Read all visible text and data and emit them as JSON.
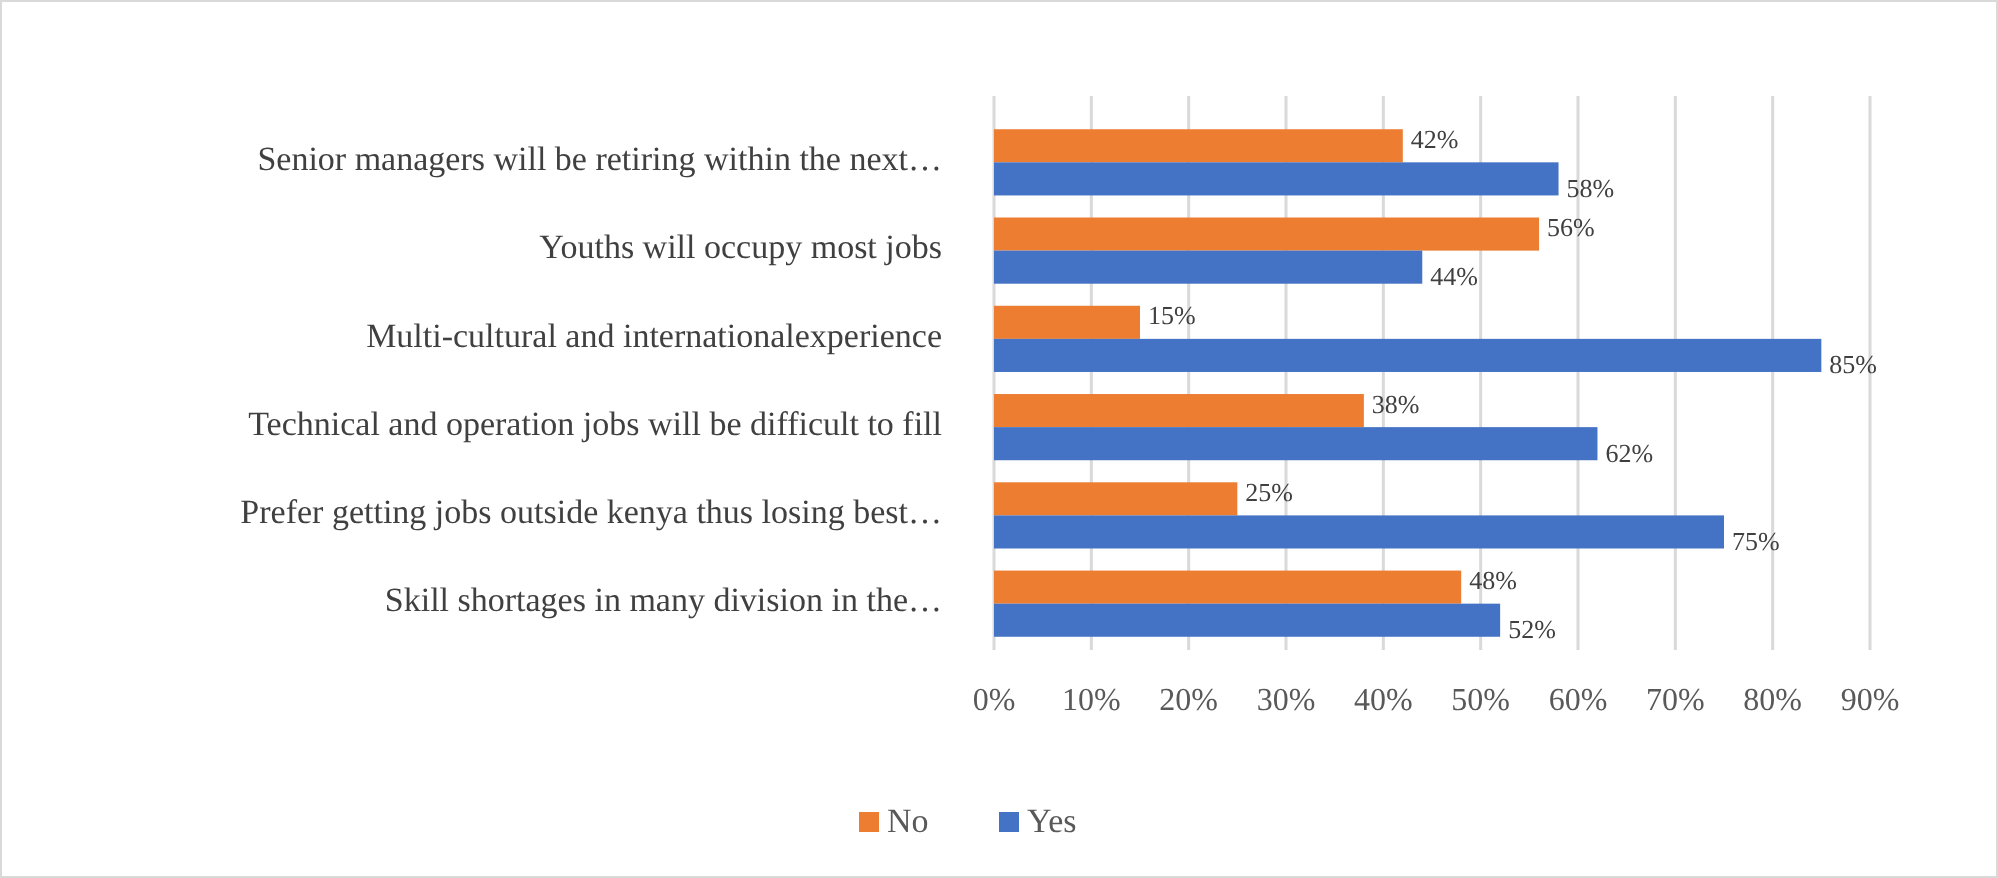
{
  "chart_data": {
    "type": "bar",
    "orientation": "horizontal",
    "categories": [
      "Senior managers will be retiring within the next…",
      "Youths will occupy most jobs",
      "Multi-cultural and internationalexperience",
      "Technical and operation jobs will be difficult to fill",
      "Prefer getting jobs outside kenya thus losing best…",
      "Skill shortages in many division in the…"
    ],
    "series": [
      {
        "name": "No",
        "color": "#ed7d31",
        "values": [
          42,
          56,
          15,
          38,
          25,
          48
        ],
        "value_labels": [
          "42%",
          "56%",
          "15%",
          "38%",
          "25%",
          "48%"
        ]
      },
      {
        "name": "Yes",
        "color": "#4472c4",
        "values": [
          58,
          44,
          85,
          62,
          75,
          52
        ],
        "value_labels": [
          "58%",
          "44%",
          "85%",
          "62%",
          "75%",
          "52%"
        ]
      }
    ],
    "xlim": [
      0,
      90
    ],
    "xticks": [
      {
        "value": 0,
        "label": "0%"
      },
      {
        "value": 10,
        "label": "10%"
      },
      {
        "value": 20,
        "label": "20%"
      },
      {
        "value": 30,
        "label": "30%"
      },
      {
        "value": 40,
        "label": "40%"
      },
      {
        "value": 50,
        "label": "50%"
      },
      {
        "value": 60,
        "label": "60%"
      },
      {
        "value": 70,
        "label": "70%"
      },
      {
        "value": 80,
        "label": "80%"
      },
      {
        "value": 90,
        "label": "90%"
      }
    ],
    "grid": "x",
    "legend": "bottom"
  }
}
